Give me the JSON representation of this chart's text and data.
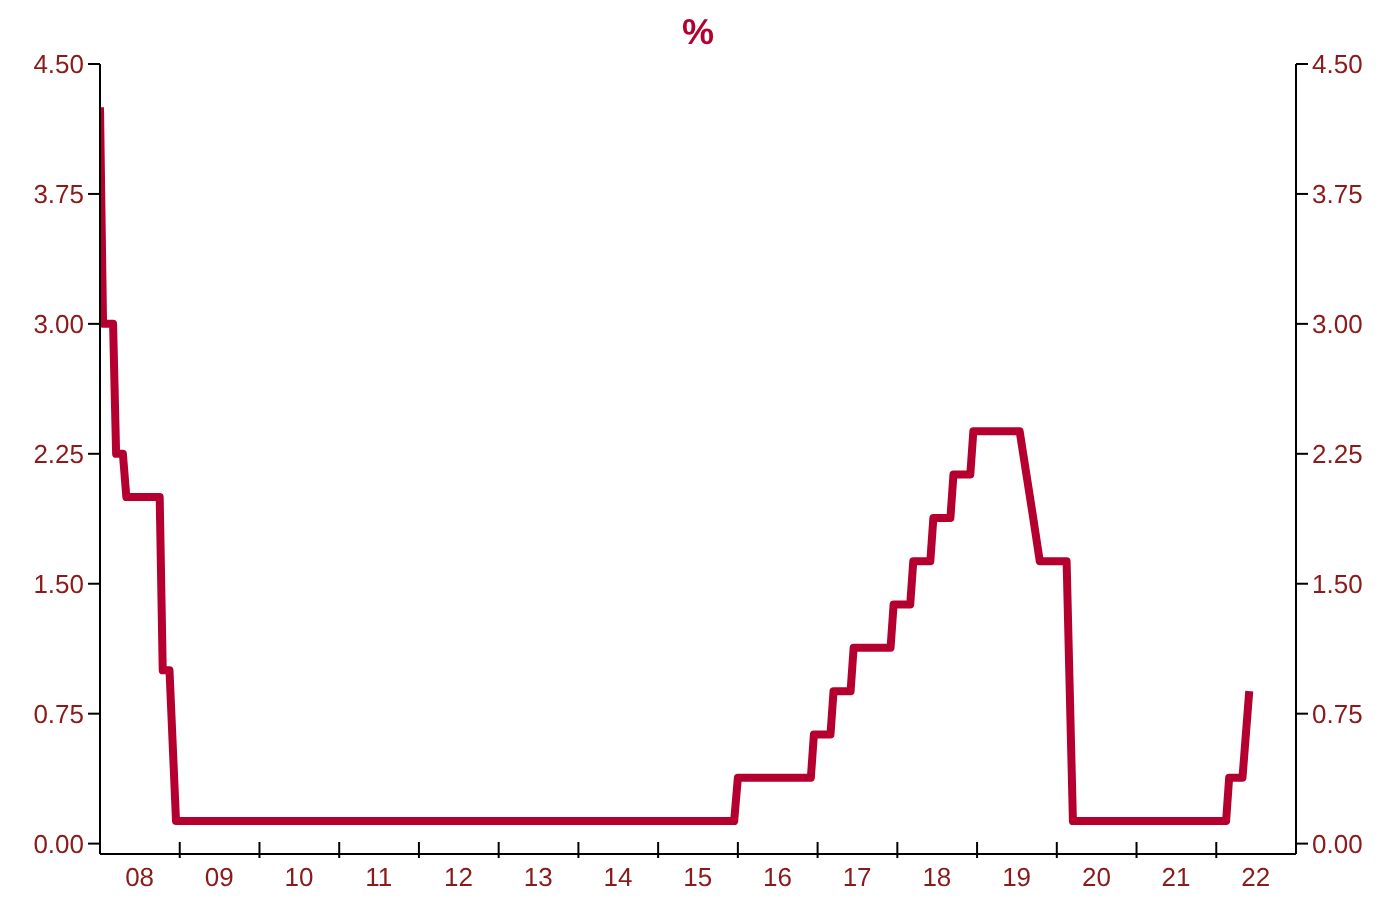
{
  "chart_data": {
    "type": "line",
    "title": "%",
    "x": [
      "2008-01-01",
      "2008-01-15",
      "2008-03-01",
      "2008-03-15",
      "2008-04-15",
      "2008-05-01",
      "2008-10-01",
      "2008-10-15",
      "2008-11-15",
      "2008-12-15",
      "2015-12-15",
      "2016-01-01",
      "2016-12-01",
      "2016-12-15",
      "2017-03-01",
      "2017-03-15",
      "2017-06-01",
      "2017-06-15",
      "2017-12-01",
      "2017-12-15",
      "2018-03-01",
      "2018-03-15",
      "2018-06-01",
      "2018-06-15",
      "2018-09-01",
      "2018-09-15",
      "2018-12-01",
      "2018-12-15",
      "2019-07-15",
      "2019-08-15",
      "2019-09-15",
      "2019-10-15",
      "2020-02-15",
      "2020-03-15",
      "2022-02-15",
      "2022-03-01",
      "2022-05-01",
      "2022-06-01"
    ],
    "series": [
      {
        "color": "#b5002f",
        "values": [
          4.25,
          3.0,
          3.0,
          2.25,
          2.25,
          2.0,
          2.0,
          1.0,
          1.0,
          0.13,
          0.13,
          0.38,
          0.38,
          0.63,
          0.63,
          0.88,
          0.88,
          1.13,
          1.13,
          1.38,
          1.38,
          1.63,
          1.63,
          1.88,
          1.88,
          2.13,
          2.13,
          2.38,
          2.38,
          2.13,
          1.88,
          1.63,
          1.63,
          0.13,
          0.13,
          0.38,
          0.38,
          0.88
        ]
      }
    ],
    "xlim": [
      "2008-01-01",
      "2023-01-01"
    ],
    "xticks": [
      {
        "value": "2008-07-01",
        "label": "08"
      },
      {
        "value": "2009-01-01",
        "label": null
      },
      {
        "value": "2009-07-01",
        "label": "09"
      },
      {
        "value": "2010-01-01",
        "label": null
      },
      {
        "value": "2010-07-01",
        "label": "10"
      },
      {
        "value": "2011-01-01",
        "label": null
      },
      {
        "value": "2011-07-01",
        "label": "11"
      },
      {
        "value": "2012-01-01",
        "label": null
      },
      {
        "value": "2012-07-01",
        "label": "12"
      },
      {
        "value": "2013-01-01",
        "label": null
      },
      {
        "value": "2013-07-01",
        "label": "13"
      },
      {
        "value": "2014-01-01",
        "label": null
      },
      {
        "value": "2014-07-01",
        "label": "14"
      },
      {
        "value": "2015-01-01",
        "label": null
      },
      {
        "value": "2015-07-01",
        "label": "15"
      },
      {
        "value": "2016-01-01",
        "label": null
      },
      {
        "value": "2016-07-01",
        "label": "16"
      },
      {
        "value": "2017-01-01",
        "label": null
      },
      {
        "value": "2017-07-01",
        "label": "17"
      },
      {
        "value": "2018-01-01",
        "label": null
      },
      {
        "value": "2018-07-01",
        "label": "18"
      },
      {
        "value": "2019-01-01",
        "label": null
      },
      {
        "value": "2019-07-01",
        "label": "19"
      },
      {
        "value": "2020-01-01",
        "label": null
      },
      {
        "value": "2020-07-01",
        "label": "20"
      },
      {
        "value": "2021-01-01",
        "label": null
      },
      {
        "value": "2021-07-01",
        "label": "21"
      },
      {
        "value": "2022-01-01",
        "label": null
      },
      {
        "value": "2022-07-01",
        "label": "22"
      }
    ],
    "ylim": [
      -0.06,
      4.5
    ],
    "yticks": [
      {
        "value": 0,
        "label": "0.00"
      },
      {
        "value": 0.75,
        "label": "0.75"
      },
      {
        "value": 1.5,
        "label": "1.50"
      },
      {
        "value": 2.25,
        "label": "2.25"
      },
      {
        "value": 3.0,
        "label": "3.00"
      },
      {
        "value": 3.75,
        "label": "3.75"
      },
      {
        "value": 4.5,
        "label": "4.50"
      }
    ],
    "y2lim": [
      -0.06,
      4.5
    ],
    "y2ticks": [
      {
        "value": 0,
        "label": "0.00"
      },
      {
        "value": 0.75,
        "label": "0.75"
      },
      {
        "value": 1.5,
        "label": "1.50"
      },
      {
        "value": 2.25,
        "label": "2.25"
      },
      {
        "value": 3.0,
        "label": "3.00"
      },
      {
        "value": 3.75,
        "label": "3.75"
      },
      {
        "value": 4.5,
        "label": "4.50"
      }
    ],
    "marker": "none",
    "line_style": "solid"
  }
}
